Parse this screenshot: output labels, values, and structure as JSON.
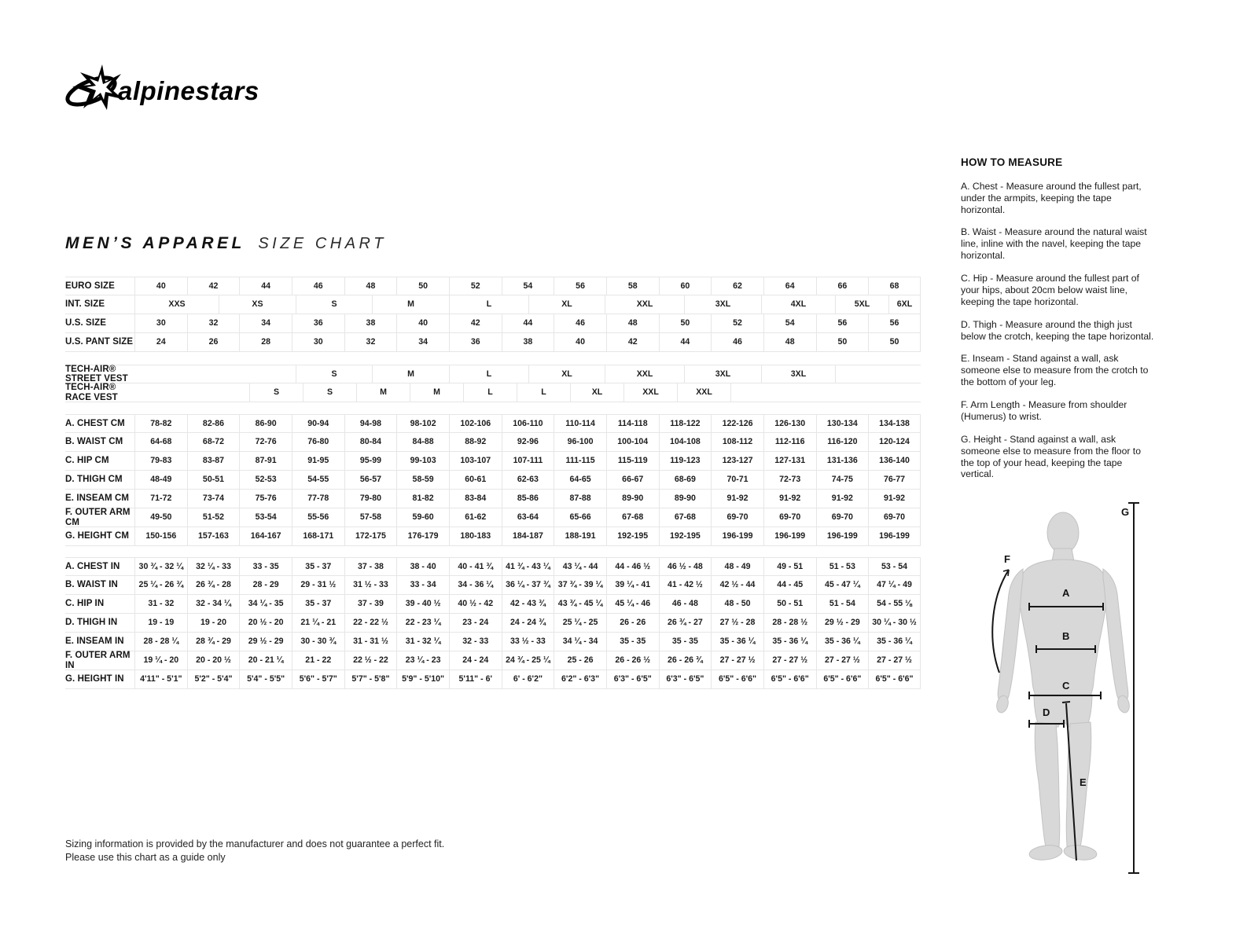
{
  "brand": {
    "wordmark": "alpinestars"
  },
  "title": {
    "main": "MEN’S APPAREL",
    "sub": "SIZE CHART"
  },
  "size_table": {
    "groups": [
      {
        "name": "sizes",
        "rows": [
          {
            "label": "EURO SIZE",
            "cells": [
              "40",
              "42",
              "44",
              "46",
              "48",
              "50",
              "52",
              "54",
              "56",
              "58",
              "60",
              "62",
              "64",
              "66",
              "68"
            ]
          },
          {
            "label": "INT. SIZE",
            "widths": [
              10.7,
              9.8,
              9.7,
              9.8,
              10.1,
              9.7,
              10.1,
              9.8,
              9.4,
              6.8,
              4.1
            ],
            "cells": [
              "XXS",
              "XS",
              "S",
              "M",
              "L",
              "XL",
              "XXL",
              "3XL",
              "4XL",
              "5XL",
              "6XL"
            ]
          },
          {
            "label": "U.S. SIZE",
            "cells": [
              "30",
              "32",
              "34",
              "36",
              "38",
              "40",
              "42",
              "44",
              "46",
              "48",
              "50",
              "52",
              "54",
              "56",
              "56"
            ]
          },
          {
            "label": "U.S. PANT SIZE",
            "cells": [
              "24",
              "26",
              "28",
              "30",
              "32",
              "34",
              "36",
              "38",
              "40",
              "42",
              "44",
              "46",
              "48",
              "50",
              "50"
            ]
          }
        ]
      },
      {
        "name": "vests",
        "rows": [
          {
            "label": "TECH-AIR® STREET VEST",
            "widths": [
              10.7,
              9.8,
              9.7,
              9.8,
              10.1,
              9.7,
              10.1,
              9.8,
              9.4,
              6.8,
              4.1
            ],
            "cells": [
              "",
              "",
              "S",
              "M",
              "L",
              "XL",
              "XXL",
              "3XL",
              "3XL",
              "",
              ""
            ]
          },
          {
            "label": "TECH-AIR® RACE VEST",
            "widths": [
              14.6,
              6.8,
              6.8,
              6.8,
              6.8,
              6.8,
              6.8,
              6.8,
              6.8,
              6.8,
              24.2
            ],
            "cells": [
              "",
              "S",
              "S",
              "M",
              "M",
              "L",
              "L",
              "XL",
              "XXL",
              "XXL",
              ""
            ]
          }
        ]
      },
      {
        "name": "cm",
        "rows": [
          {
            "label": "A. CHEST CM",
            "cells": [
              "78-82",
              "82-86",
              "86-90",
              "90-94",
              "94-98",
              "98-102",
              "102-106",
              "106-110",
              "110-114",
              "114-118",
              "118-122",
              "122-126",
              "126-130",
              "130-134",
              "134-138"
            ]
          },
          {
            "label": "B. WAIST CM",
            "cells": [
              "64-68",
              "68-72",
              "72-76",
              "76-80",
              "80-84",
              "84-88",
              "88-92",
              "92-96",
              "96-100",
              "100-104",
              "104-108",
              "108-112",
              "112-116",
              "116-120",
              "120-124"
            ]
          },
          {
            "label": "C. HIP CM",
            "cells": [
              "79-83",
              "83-87",
              "87-91",
              "91-95",
              "95-99",
              "99-103",
              "103-107",
              "107-111",
              "111-115",
              "115-119",
              "119-123",
              "123-127",
              "127-131",
              "131-136",
              "136-140"
            ]
          },
          {
            "label": "D. THIGH CM",
            "cells": [
              "48-49",
              "50-51",
              "52-53",
              "54-55",
              "56-57",
              "58-59",
              "60-61",
              "62-63",
              "64-65",
              "66-67",
              "68-69",
              "70-71",
              "72-73",
              "74-75",
              "76-77"
            ]
          },
          {
            "label": "E. INSEAM CM",
            "cells": [
              "71-72",
              "73-74",
              "75-76",
              "77-78",
              "79-80",
              "81-82",
              "83-84",
              "85-86",
              "87-88",
              "89-90",
              "89-90",
              "91-92",
              "91-92",
              "91-92",
              "91-92"
            ]
          },
          {
            "label": "F. OUTER ARM CM",
            "cells": [
              "49-50",
              "51-52",
              "53-54",
              "55-56",
              "57-58",
              "59-60",
              "61-62",
              "63-64",
              "65-66",
              "67-68",
              "67-68",
              "69-70",
              "69-70",
              "69-70",
              "69-70"
            ]
          },
          {
            "label": "G. HEIGHT CM",
            "cells": [
              "150-156",
              "157-163",
              "164-167",
              "168-171",
              "172-175",
              "176-179",
              "180-183",
              "184-187",
              "188-191",
              "192-195",
              "192-195",
              "196-199",
              "196-199",
              "196-199",
              "196-199"
            ]
          }
        ]
      },
      {
        "name": "in",
        "rows": [
          {
            "label": "A. CHEST IN",
            "cells": [
              "30 ¾ - 32 ¼",
              "32 ¼ - 33",
              "33 - 35",
              "35 - 37",
              "37 - 38",
              "38 - 40",
              "40 - 41 ¾",
              "41 ¾ - 43 ¼",
              "43 ¼ - 44",
              "44 - 46 ½",
              "46 ½ - 48",
              "48 - 49",
              "49 - 51",
              "51 - 53",
              "53 - 54"
            ]
          },
          {
            "label": "B. WAIST IN",
            "cells": [
              "25 ¼ - 26 ¾",
              "26 ¾ - 28",
              "28 - 29",
              "29 - 31 ½",
              "31 ½ - 33",
              "33 - 34",
              "34 - 36 ¼",
              "36 ¼ - 37 ¾",
              "37 ¾ - 39 ¼",
              "39 ¼ - 41",
              "41 - 42 ½",
              "42 ½ - 44",
              "44 - 45",
              "45 - 47 ¼",
              "47 ¼ - 49"
            ]
          },
          {
            "label": "C. HIP IN",
            "cells": [
              "31 - 32",
              "32 - 34 ¼",
              "34 ¼ - 35",
              "35 - 37",
              "37 - 39",
              "39 - 40 ½",
              "40 ½ - 42",
              "42 - 43 ¾",
              "43 ¾ - 45 ¼",
              "45 ¼ - 46",
              "46 - 48",
              "48 - 50",
              "50 - 51",
              "51 - 54",
              "54 - 55 ⅛"
            ]
          },
          {
            "label": "D. THIGH IN",
            "cells": [
              "19 - 19",
              "19 - 20",
              "20 ½ - 20",
              "21 ¼ - 21",
              "22 - 22 ½",
              "22 - 23 ¼",
              "23 - 24",
              "24 - 24 ¾",
              "25 ¼ - 25",
              "26 - 26",
              "26 ¾ - 27",
              "27 ½ - 28",
              "28 - 28 ½",
              "29 ½ - 29",
              "30 ¼ - 30 ½"
            ]
          },
          {
            "label": "E. INSEAM IN",
            "cells": [
              "28 - 28 ¼",
              "28 ¾ - 29",
              "29 ½ - 29",
              "30 - 30 ¾",
              "31 - 31 ½",
              "31 - 32 ¼",
              "32 - 33",
              "33 ½ - 33",
              "34 ¼ - 34",
              "35 - 35",
              "35 - 35",
              "35 - 36 ¼",
              "35 - 36 ¼",
              "35 - 36 ¼",
              "35 - 36 ¼"
            ]
          },
          {
            "label": "F. OUTER ARM IN",
            "cells": [
              "19 ¼ - 20",
              "20 - 20 ½",
              "20 - 21 ¼",
              "21 - 22",
              "22 ½ - 22",
              "23 ¼ - 23",
              "24 - 24",
              "24 ¾ - 25 ¼",
              "25 - 26",
              "26 - 26 ½",
              "26 - 26 ¾",
              "27 - 27 ½",
              "27 - 27 ½",
              "27 - 27 ½",
              "27 - 27 ½"
            ]
          },
          {
            "label": "G. HEIGHT IN",
            "cells": [
              "4'11\" - 5'1\"",
              "5'2\" - 5'4\"",
              "5'4\" - 5'5\"",
              "5'6\" - 5'7\"",
              "5'7\" - 5'8\"",
              "5'9\" - 5'10\"",
              "5'11\" - 6'",
              "6' - 6'2\"",
              "6'2\" - 6'3\"",
              "6'3\" - 6'5\"",
              "6'3\" - 6'5\"",
              "6'5\" - 6'6\"",
              "6'5\" - 6'6\"",
              "6'5\" - 6'6\"",
              "6'5\" - 6'6\""
            ]
          }
        ]
      }
    ]
  },
  "how_to_measure": {
    "heading": "HOW TO MEASURE",
    "items": [
      "A. Chest - Measure around the fullest part, under the armpits, keeping the tape horizontal.",
      "B. Waist - Measure around the natural waist line, inline with the navel, keeping the tape horizontal.",
      "C. Hip - Measure around the fullest part of your hips, about 20cm below waist line, keeping the tape horizontal.",
      "D. Thigh - Measure around the thigh just below the crotch, keeping the tape horizontal.",
      "E. Inseam - Stand against a wall, ask someone else to measure from the crotch to the bottom of your leg.",
      "F. Arm Length - Measure from shoulder (Humerus) to wrist.",
      "G. Height - Stand against a wall, ask someone else to measure from the floor to the top of your head, keeping the tape vertical."
    ]
  },
  "figure": {
    "labels": {
      "a": "A",
      "b": "B",
      "c": "C",
      "d": "D",
      "e": "E",
      "f": "F",
      "g": "G"
    }
  },
  "footer": {
    "line1": "Sizing information is provided by the manufacturer and does not guarantee a perfect fit.",
    "line2": "Please use this chart as a guide only"
  },
  "colors": {
    "text": "#1a1a1a",
    "grid": "#e6e6e6",
    "silhouette": "#d8d8d8"
  }
}
